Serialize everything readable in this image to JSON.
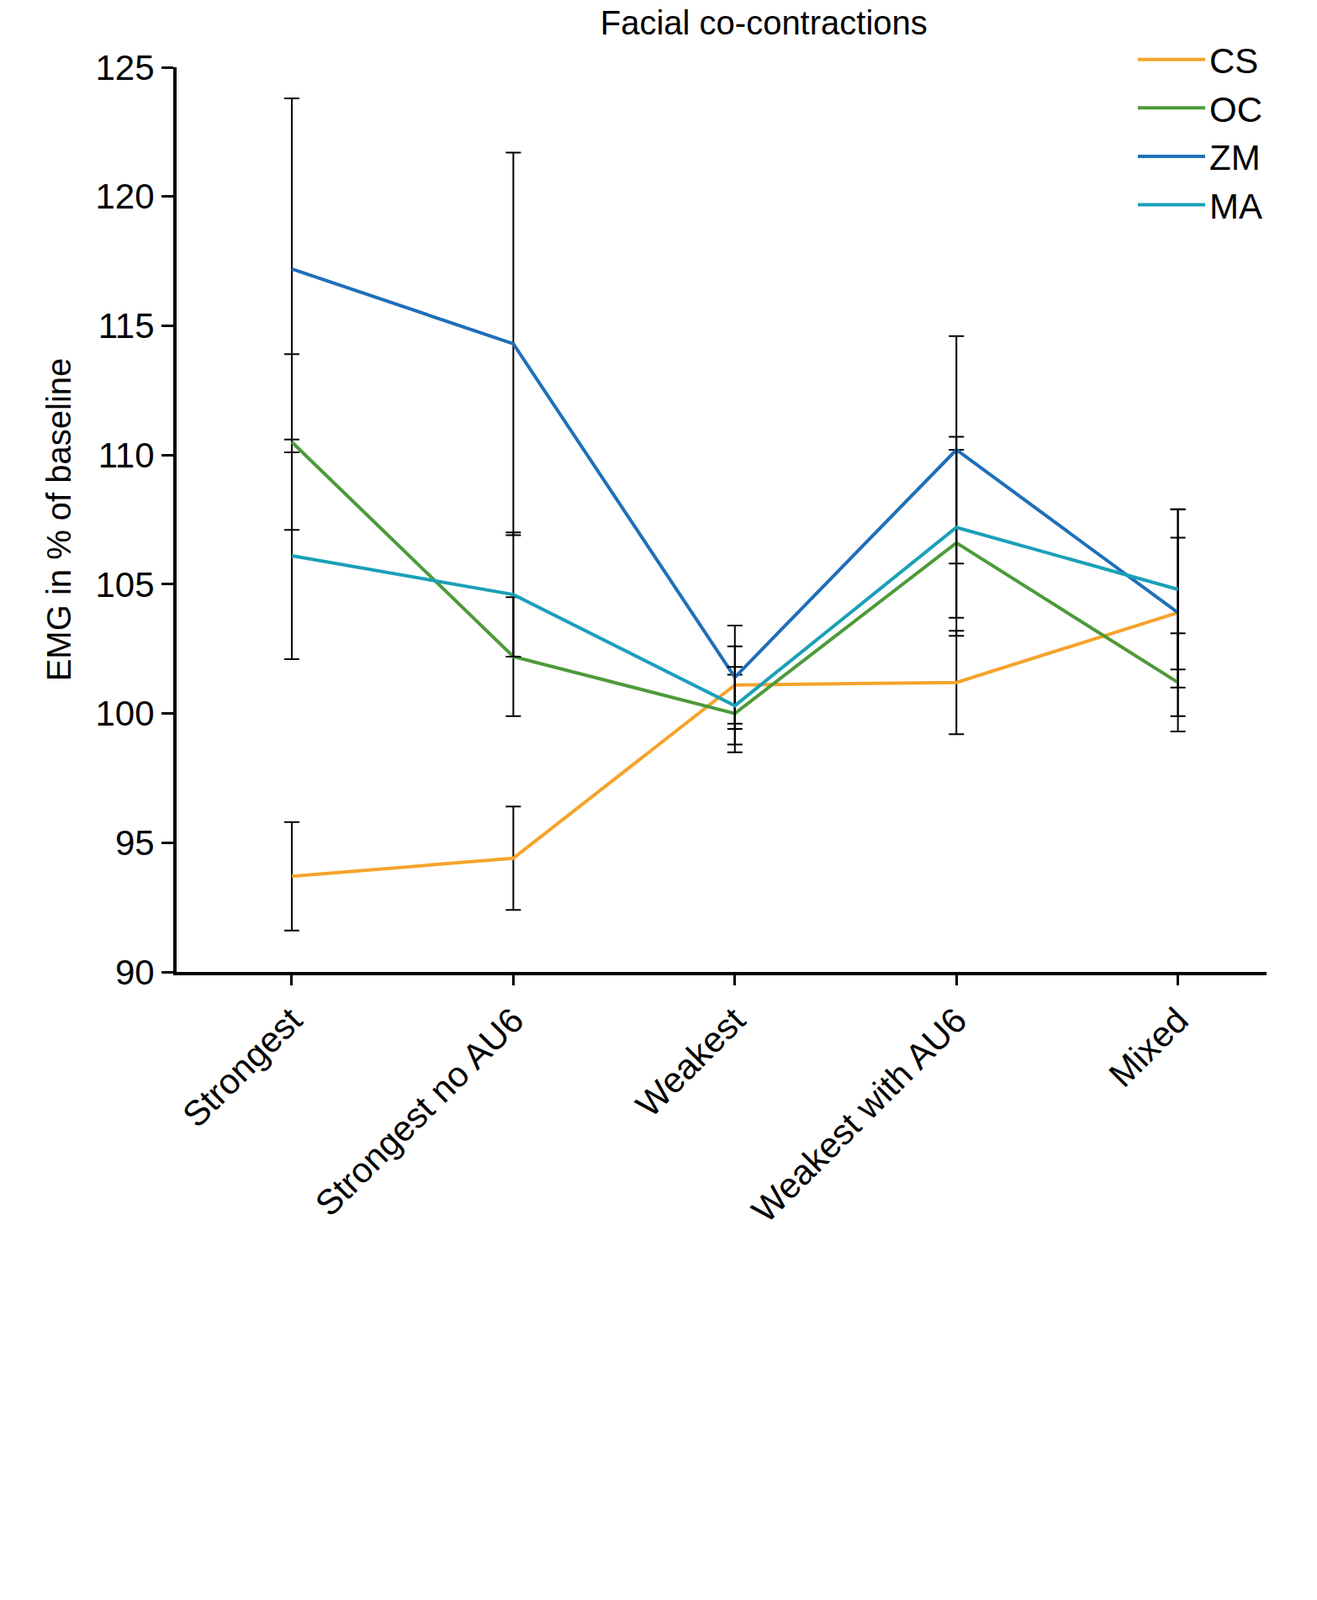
{
  "chart_data": {
    "type": "line",
    "title": "Facial co-contractions",
    "y_label": "EMG in % of baseline",
    "categories": [
      "Strongest",
      "Strongest no AU6",
      "Weakest",
      "Weakest with AU6",
      "Mixed"
    ],
    "series": [
      {
        "name": "CS",
        "color": "#f5a32b",
        "values": [
          93.7,
          94.4,
          101.1,
          101.2,
          103.9
        ],
        "errors": [
          2.1,
          2.0,
          1.5,
          2.0,
          2.9
        ]
      },
      {
        "name": "OC",
        "color": "#4d9a3a",
        "values": [
          110.5,
          102.2,
          100.0,
          106.6,
          101.2
        ],
        "errors": [
          3.4,
          2.3,
          1.5,
          3.6,
          1.9
        ]
      },
      {
        "name": "ZM",
        "color": "#1f6fb8",
        "values": [
          117.2,
          114.3,
          101.4,
          110.2,
          103.9
        ],
        "errors": [
          6.6,
          7.4,
          2.0,
          4.4,
          4.0
        ]
      },
      {
        "name": "MA",
        "color": "#1aa0b8",
        "values": [
          106.1,
          104.6,
          100.3,
          107.2,
          104.8
        ],
        "errors": [
          4.0,
          2.4,
          1.5,
          3.5,
          3.1
        ]
      }
    ],
    "ylim": [
      90,
      125
    ],
    "yticks": [
      90,
      95,
      100,
      105,
      110,
      115,
      120,
      125
    ],
    "grid": false,
    "legend": "top-right"
  }
}
